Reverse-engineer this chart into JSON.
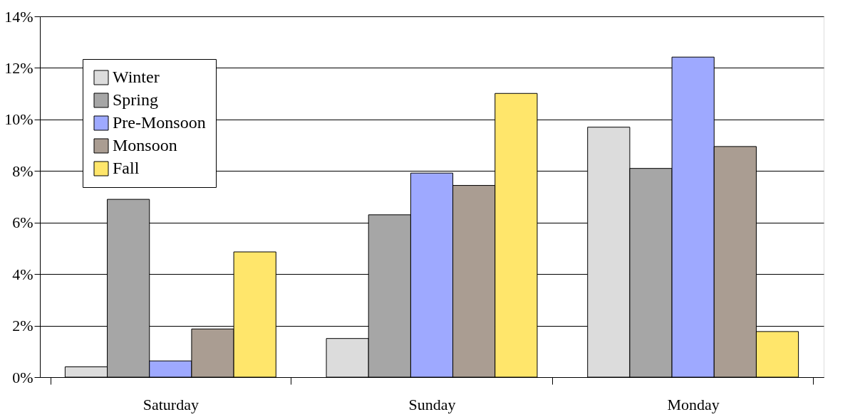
{
  "chart_data": {
    "type": "bar",
    "categories": [
      "Saturday",
      "Sunday",
      "Monday"
    ],
    "series": [
      {
        "name": "Winter",
        "color": "#dcdcdc",
        "values": [
          0.4,
          1.5,
          9.7
        ]
      },
      {
        "name": "Spring",
        "color": "#a6a6a6",
        "values": [
          6.9,
          6.3,
          8.1
        ]
      },
      {
        "name": "Pre-Monsoon",
        "color": "#9ea9ff",
        "values": [
          0.63,
          7.92,
          12.42
        ]
      },
      {
        "name": "Monsoon",
        "color": "#aa9d92",
        "values": [
          1.87,
          7.44,
          8.95
        ]
      },
      {
        "name": "Fall",
        "color": "#ffe66b",
        "values": [
          4.86,
          11.01,
          1.77
        ]
      }
    ],
    "ylim": [
      0,
      14
    ],
    "yticks": [
      {
        "value": 0,
        "label": "0%"
      },
      {
        "value": 2,
        "label": "2%"
      },
      {
        "value": 4,
        "label": "4%"
      },
      {
        "value": 6,
        "label": "6%"
      },
      {
        "value": 8,
        "label": "8%"
      },
      {
        "value": 10,
        "label": "10%"
      },
      {
        "value": 12,
        "label": "12%"
      },
      {
        "value": 14,
        "label": "14%"
      }
    ],
    "grid": "y",
    "legend": "top left"
  }
}
